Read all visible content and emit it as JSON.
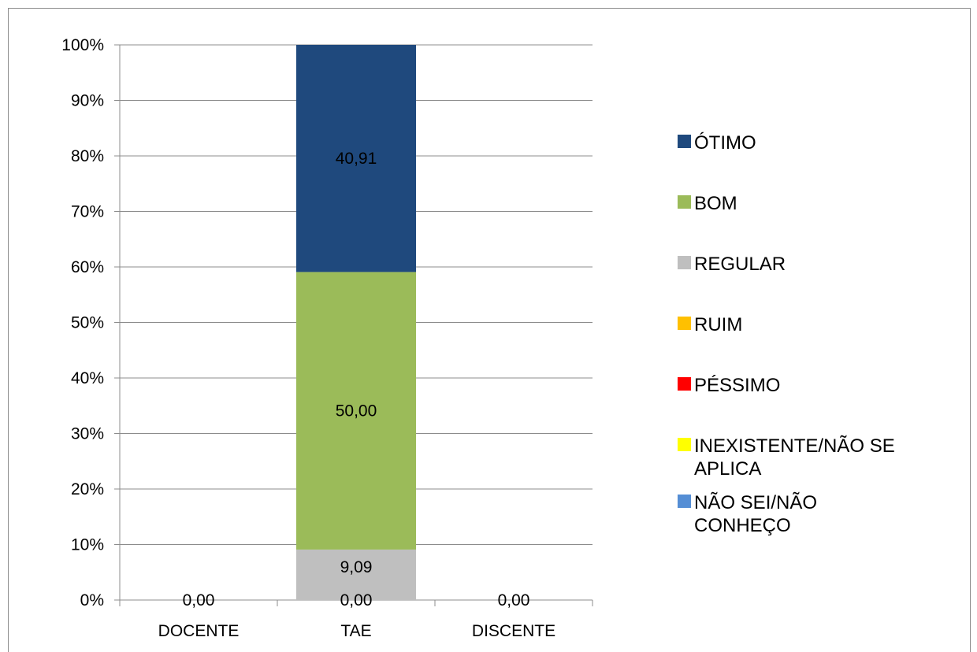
{
  "chart_data": {
    "type": "bar",
    "stacked": true,
    "normalized_percent": true,
    "categories": [
      "DOCENTE",
      "TAE",
      "DISCENTE"
    ],
    "yticks": [
      "0%",
      "10%",
      "20%",
      "30%",
      "40%",
      "50%",
      "60%",
      "70%",
      "80%",
      "90%",
      "100%"
    ],
    "ylim": [
      0,
      100
    ],
    "grid": true,
    "legend_position": "right",
    "series": [
      {
        "name": "NÃO SEI/NÃO CONHEÇO",
        "color": "#558ED5",
        "values": [
          0,
          0,
          0
        ],
        "labels": [
          "",
          "",
          ""
        ]
      },
      {
        "name": "INEXISTENTE/NÃO SE APLICA",
        "color": "#FFFF00",
        "values": [
          0,
          0,
          0
        ],
        "labels": [
          "",
          "",
          ""
        ]
      },
      {
        "name": "PÉSSIMO",
        "color": "#FF0000",
        "values": [
          0,
          0,
          0
        ],
        "labels": [
          "0,00",
          "0,00",
          "0,00"
        ]
      },
      {
        "name": "RUIM",
        "color": "#FFC000",
        "values": [
          0,
          0,
          0
        ],
        "labels": [
          "",
          "",
          ""
        ]
      },
      {
        "name": "REGULAR",
        "color": "#BFBFBF",
        "values": [
          0,
          9.09,
          0
        ],
        "labels": [
          "",
          "9,09",
          ""
        ]
      },
      {
        "name": "BOM",
        "color": "#9BBB59",
        "values": [
          0,
          50.0,
          0
        ],
        "labels": [
          "",
          "50,00",
          ""
        ]
      },
      {
        "name": "ÓTIMO",
        "color": "#1F497D",
        "values": [
          0,
          40.91,
          0
        ],
        "labels": [
          "",
          "40,91",
          ""
        ]
      }
    ],
    "legend_order": [
      "ÓTIMO",
      "BOM",
      "REGULAR",
      "RUIM",
      "PÉSSIMO",
      "INEXISTENTE/NÃO SE APLICA",
      "NÃO SEI/NÃO CONHEÇO"
    ],
    "legend_lines": {
      "ÓTIMO": [
        "ÓTIMO"
      ],
      "BOM": [
        "BOM"
      ],
      "REGULAR": [
        "REGULAR"
      ],
      "RUIM": [
        "RUIM"
      ],
      "PÉSSIMO": [
        "PÉSSIMO"
      ],
      "INEXISTENTE/NÃO SE APLICA": [
        "INEXISTENTE/NÃO SE",
        "APLICA"
      ],
      "NÃO SEI/NÃO CONHEÇO": [
        "NÃO SEI/NÃO",
        "CONHEÇO"
      ]
    }
  }
}
